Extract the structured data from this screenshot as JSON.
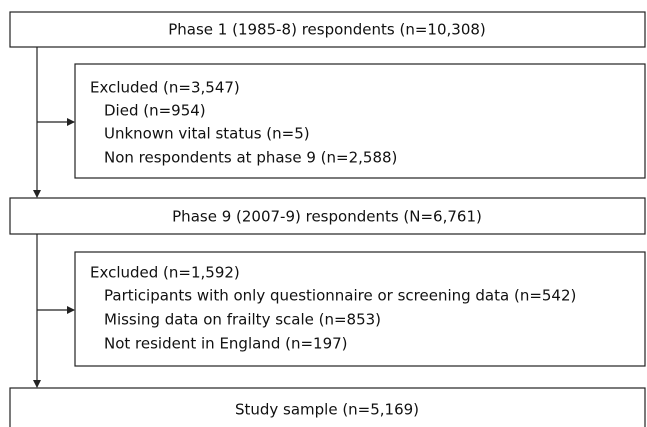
{
  "nodes": [
    {
      "label": "Phase 1 (1985-8) respondents (n=10,308)"
    },
    {
      "label": "Excluded (n=3,547)",
      "items": [
        "Died (n=954)",
        "Unknown vital status (n=5)",
        "Non respondents at phase 9 (n=2,588)"
      ]
    },
    {
      "label": "Phase 9 (2007-9) respondents (N=6,761)"
    },
    {
      "label": "Excluded (n=1,592)",
      "items": [
        "Participants with only questionnaire or screening data (n=542)",
        "Missing data on frailty scale (n=853)",
        "Not resident in England (n=197)"
      ]
    },
    {
      "label": "Study sample (n=5,169)"
    }
  ]
}
